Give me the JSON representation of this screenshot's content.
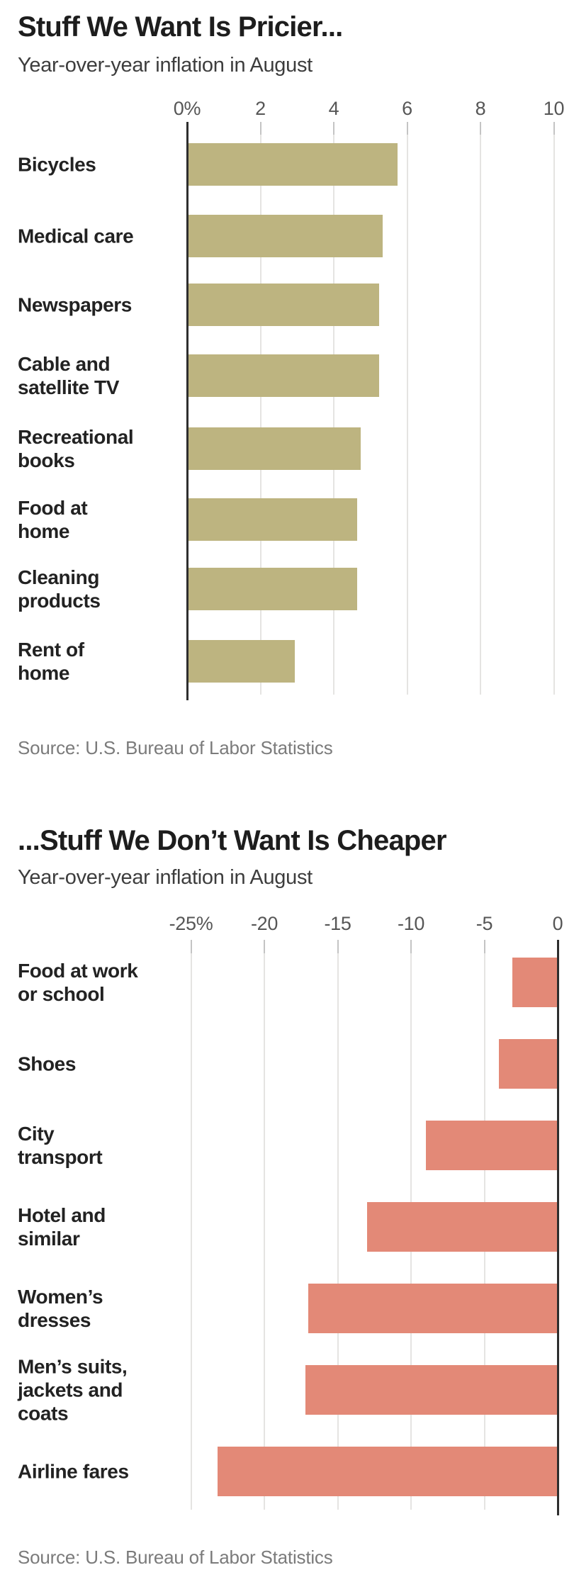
{
  "chart_data": [
    {
      "type": "bar",
      "orientation": "horizontal",
      "title": "Stuff We Want Is Pricier...",
      "subtitle": "Year-over-year inflation in August",
      "source": "Source: U.S. Bureau of Labor Statistics",
      "unit": "percent",
      "bar_color": "#bdb480",
      "grid": true,
      "value_axis_position": "top",
      "xlim": [
        0,
        10
      ],
      "xticks": [
        {
          "label": "0%",
          "value": 0
        },
        {
          "label": "2",
          "value": 2
        },
        {
          "label": "4",
          "value": 4
        },
        {
          "label": "6",
          "value": 6
        },
        {
          "label": "8",
          "value": 8
        },
        {
          "label": "10",
          "value": 10
        }
      ],
      "categories": [
        "Bicycles",
        "Medical care",
        "Newspapers",
        "Cable and satellite TV",
        "Recreational books",
        "Food at home",
        "Cleaning products",
        "Rent of home"
      ],
      "label_lines": [
        "Bicycles",
        "Medical care",
        "Newspapers",
        "Cable and\nsatellite TV",
        "Recreational\nbooks",
        "Food at\nhome",
        "Cleaning\nproducts",
        "Rent of\nhome"
      ],
      "values": [
        5.7,
        5.3,
        5.2,
        5.2,
        4.7,
        4.6,
        4.6,
        2.9
      ]
    },
    {
      "type": "bar",
      "orientation": "horizontal",
      "title": "...Stuff We Don’t Want Is Cheaper",
      "subtitle": "Year-over-year inflation in August",
      "source": "Source: U.S. Bureau of Labor Statistics",
      "unit": "percent",
      "bar_color": "#e38977",
      "grid": true,
      "value_axis_position": "top",
      "xlim": [
        -25,
        0
      ],
      "xticks": [
        {
          "label": "-25%",
          "value": -25
        },
        {
          "label": "-20",
          "value": -20
        },
        {
          "label": "-15",
          "value": -15
        },
        {
          "label": "-10",
          "value": -10
        },
        {
          "label": "-5",
          "value": -5
        },
        {
          "label": "0",
          "value": 0
        }
      ],
      "categories": [
        "Food at work or school",
        "Shoes",
        "City transport",
        "Hotel and similar",
        "Women’s dresses",
        "Men’s suits, jackets and coats",
        "Airline fares"
      ],
      "label_lines": [
        "Food at work\nor school",
        "Shoes",
        "City\ntransport",
        "Hotel and\nsimilar",
        "Women’s\ndresses",
        "Men’s suits,\njackets and\ncoats",
        "Airline fares"
      ],
      "values": [
        -3.1,
        -4.0,
        -9.0,
        -13.0,
        -17.0,
        -17.2,
        -23.2
      ]
    }
  ]
}
